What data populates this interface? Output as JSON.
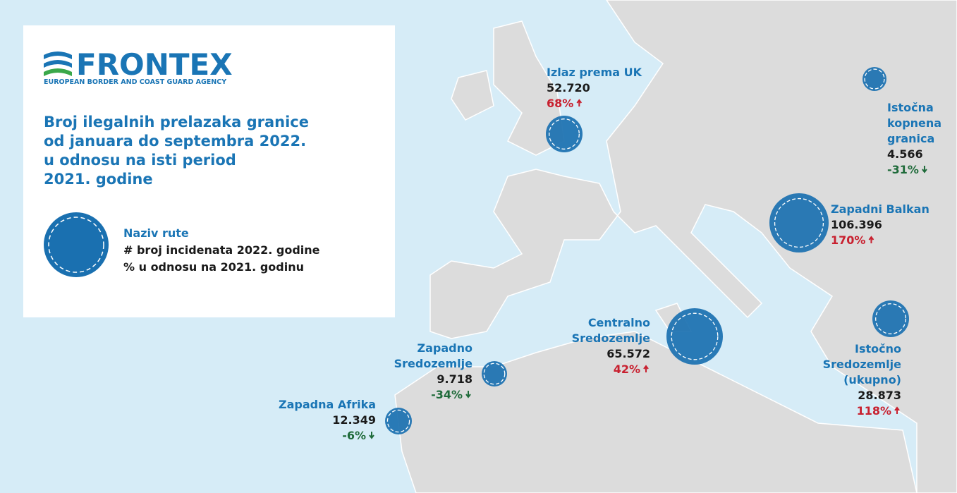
{
  "header": {
    "logo": "FRONTEX",
    "logo_subtitle": "EUROPEAN BORDER AND COAST GUARD AGENCY",
    "title_lines": [
      "Broj ilegalnih prelazaka granice",
      "od januara do septembra 2022.",
      "u odnosu na isti period",
      "2021. godine"
    ]
  },
  "legend": {
    "name": "Naziv rute",
    "count": "# broj incidenata 2022. godine",
    "change": "% u odnosu na 2021. godinu"
  },
  "routes": [
    {
      "name_lines": [
        "Izlaz prema UK"
      ],
      "count": "52.720",
      "change": "68%"
    },
    {
      "name_lines": [
        "Istočna",
        "kopnena",
        "granica"
      ],
      "count": "4.566",
      "change": "-31%"
    },
    {
      "name_lines": [
        "Zapadni Balkan"
      ],
      "count": "106.396",
      "change": "170%"
    },
    {
      "name_lines": [
        "Centralno",
        "Sredozemlje"
      ],
      "count": "65.572",
      "change": "42%"
    },
    {
      "name_lines": [
        "Zapadno",
        "Sredozemlje"
      ],
      "count": "9.718",
      "change": "-34%"
    },
    {
      "name_lines": [
        "Zapadna Afrika"
      ],
      "count": "12.349",
      "change": "-6%"
    },
    {
      "name_lines": [
        "Istočno",
        "Sredozemlje",
        "(ukupno)"
      ],
      "count": "28.873",
      "change": "118%"
    }
  ]
}
